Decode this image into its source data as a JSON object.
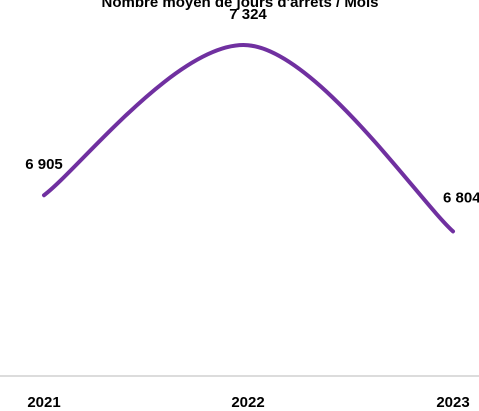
{
  "chart_data": {
    "type": "line",
    "title": "Nombre moyen de jours d'arrêts / Mois",
    "categories": [
      "2021",
      "2022",
      "2023"
    ],
    "values": [
      6905,
      7324,
      6804
    ],
    "value_labels": [
      "6 905",
      "7 324",
      "6 804"
    ],
    "color": "#7030a0",
    "smooth": true,
    "ylim": [
      6400,
      7400
    ]
  }
}
